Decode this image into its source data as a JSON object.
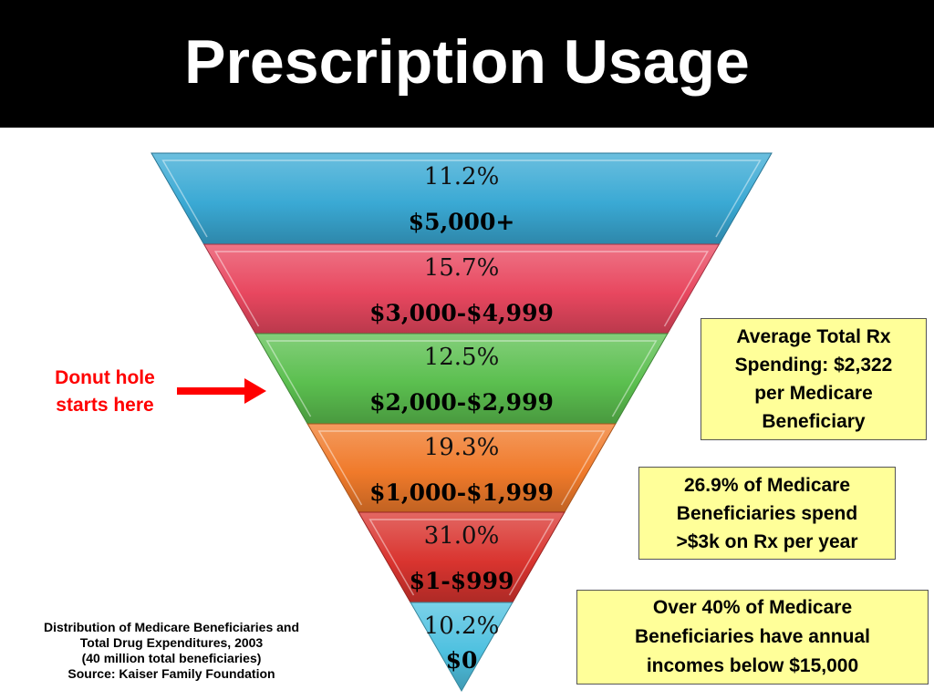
{
  "title": "Prescription Usage",
  "funnel": {
    "segments": [
      {
        "percent": "11.2%",
        "range": "$5,000+",
        "color": "#3aa9d4"
      },
      {
        "percent": "15.7%",
        "range": "$3,000-$4,999",
        "color": "#e8475f"
      },
      {
        "percent": "12.5%",
        "range": "$2,000-$2,999",
        "color": "#5bbf4f"
      },
      {
        "percent": "19.3%",
        "range": "$1,000-$1,999",
        "color": "#f07a2a"
      },
      {
        "percent": "31.0%",
        "range": "$1-$999",
        "color": "#d9342f"
      },
      {
        "percent": "10.2%",
        "range": "$0",
        "color": "#4fc1e0"
      }
    ]
  },
  "annotation": {
    "line1": "Donut hole",
    "line2": "starts here",
    "color": "#ff0000"
  },
  "callouts": {
    "box1": {
      "line1": "Average Total Rx",
      "line2": "Spending: $2,322",
      "line3": "per Medicare",
      "line4": "Beneficiary"
    },
    "box2": {
      "line1": "26.9% of Medicare",
      "line2": "Beneficiaries spend",
      "line3": ">$3k on Rx per year"
    },
    "box3": {
      "line1": "Over 40% of Medicare",
      "line2": "Beneficiaries have annual",
      "line3": "incomes below $15,000"
    },
    "fill": "#ffff99"
  },
  "caption": {
    "line1": "Distribution of Medicare Beneficiaries and",
    "line2": "Total Drug Expenditures, 2003",
    "line3": "(40 million total beneficiaries)",
    "line4": "Source: Kaiser Family Foundation"
  }
}
